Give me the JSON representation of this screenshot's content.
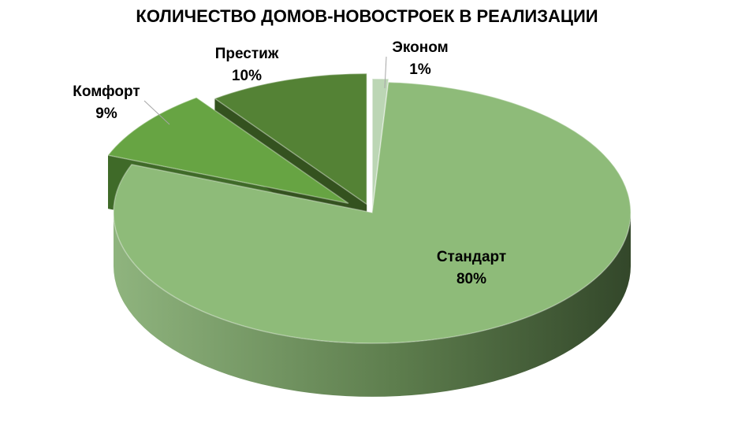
{
  "chart_data": {
    "type": "pie",
    "title": "КОЛИЧЕСТВО ДОМОВ-НОВОСТРОЕК В РЕАЛИЗАЦИИ",
    "style": "3d-exploded",
    "slices": [
      {
        "name": "Эконом",
        "value": 1,
        "label": "1%",
        "color": "#bcd6b5",
        "side_color": "#9fbf97"
      },
      {
        "name": "Стандарт",
        "value": 80,
        "label": "80%",
        "color": "#8ebb79",
        "side_color": "#5f8a4c"
      },
      {
        "name": "Комфорт",
        "value": 9,
        "label": "9%",
        "color": "#67a443",
        "side_color": "#3f6a28"
      },
      {
        "name": "Престиж",
        "value": 10,
        "label": "10%",
        "color": "#548235",
        "side_color": "#34521f"
      }
    ]
  }
}
